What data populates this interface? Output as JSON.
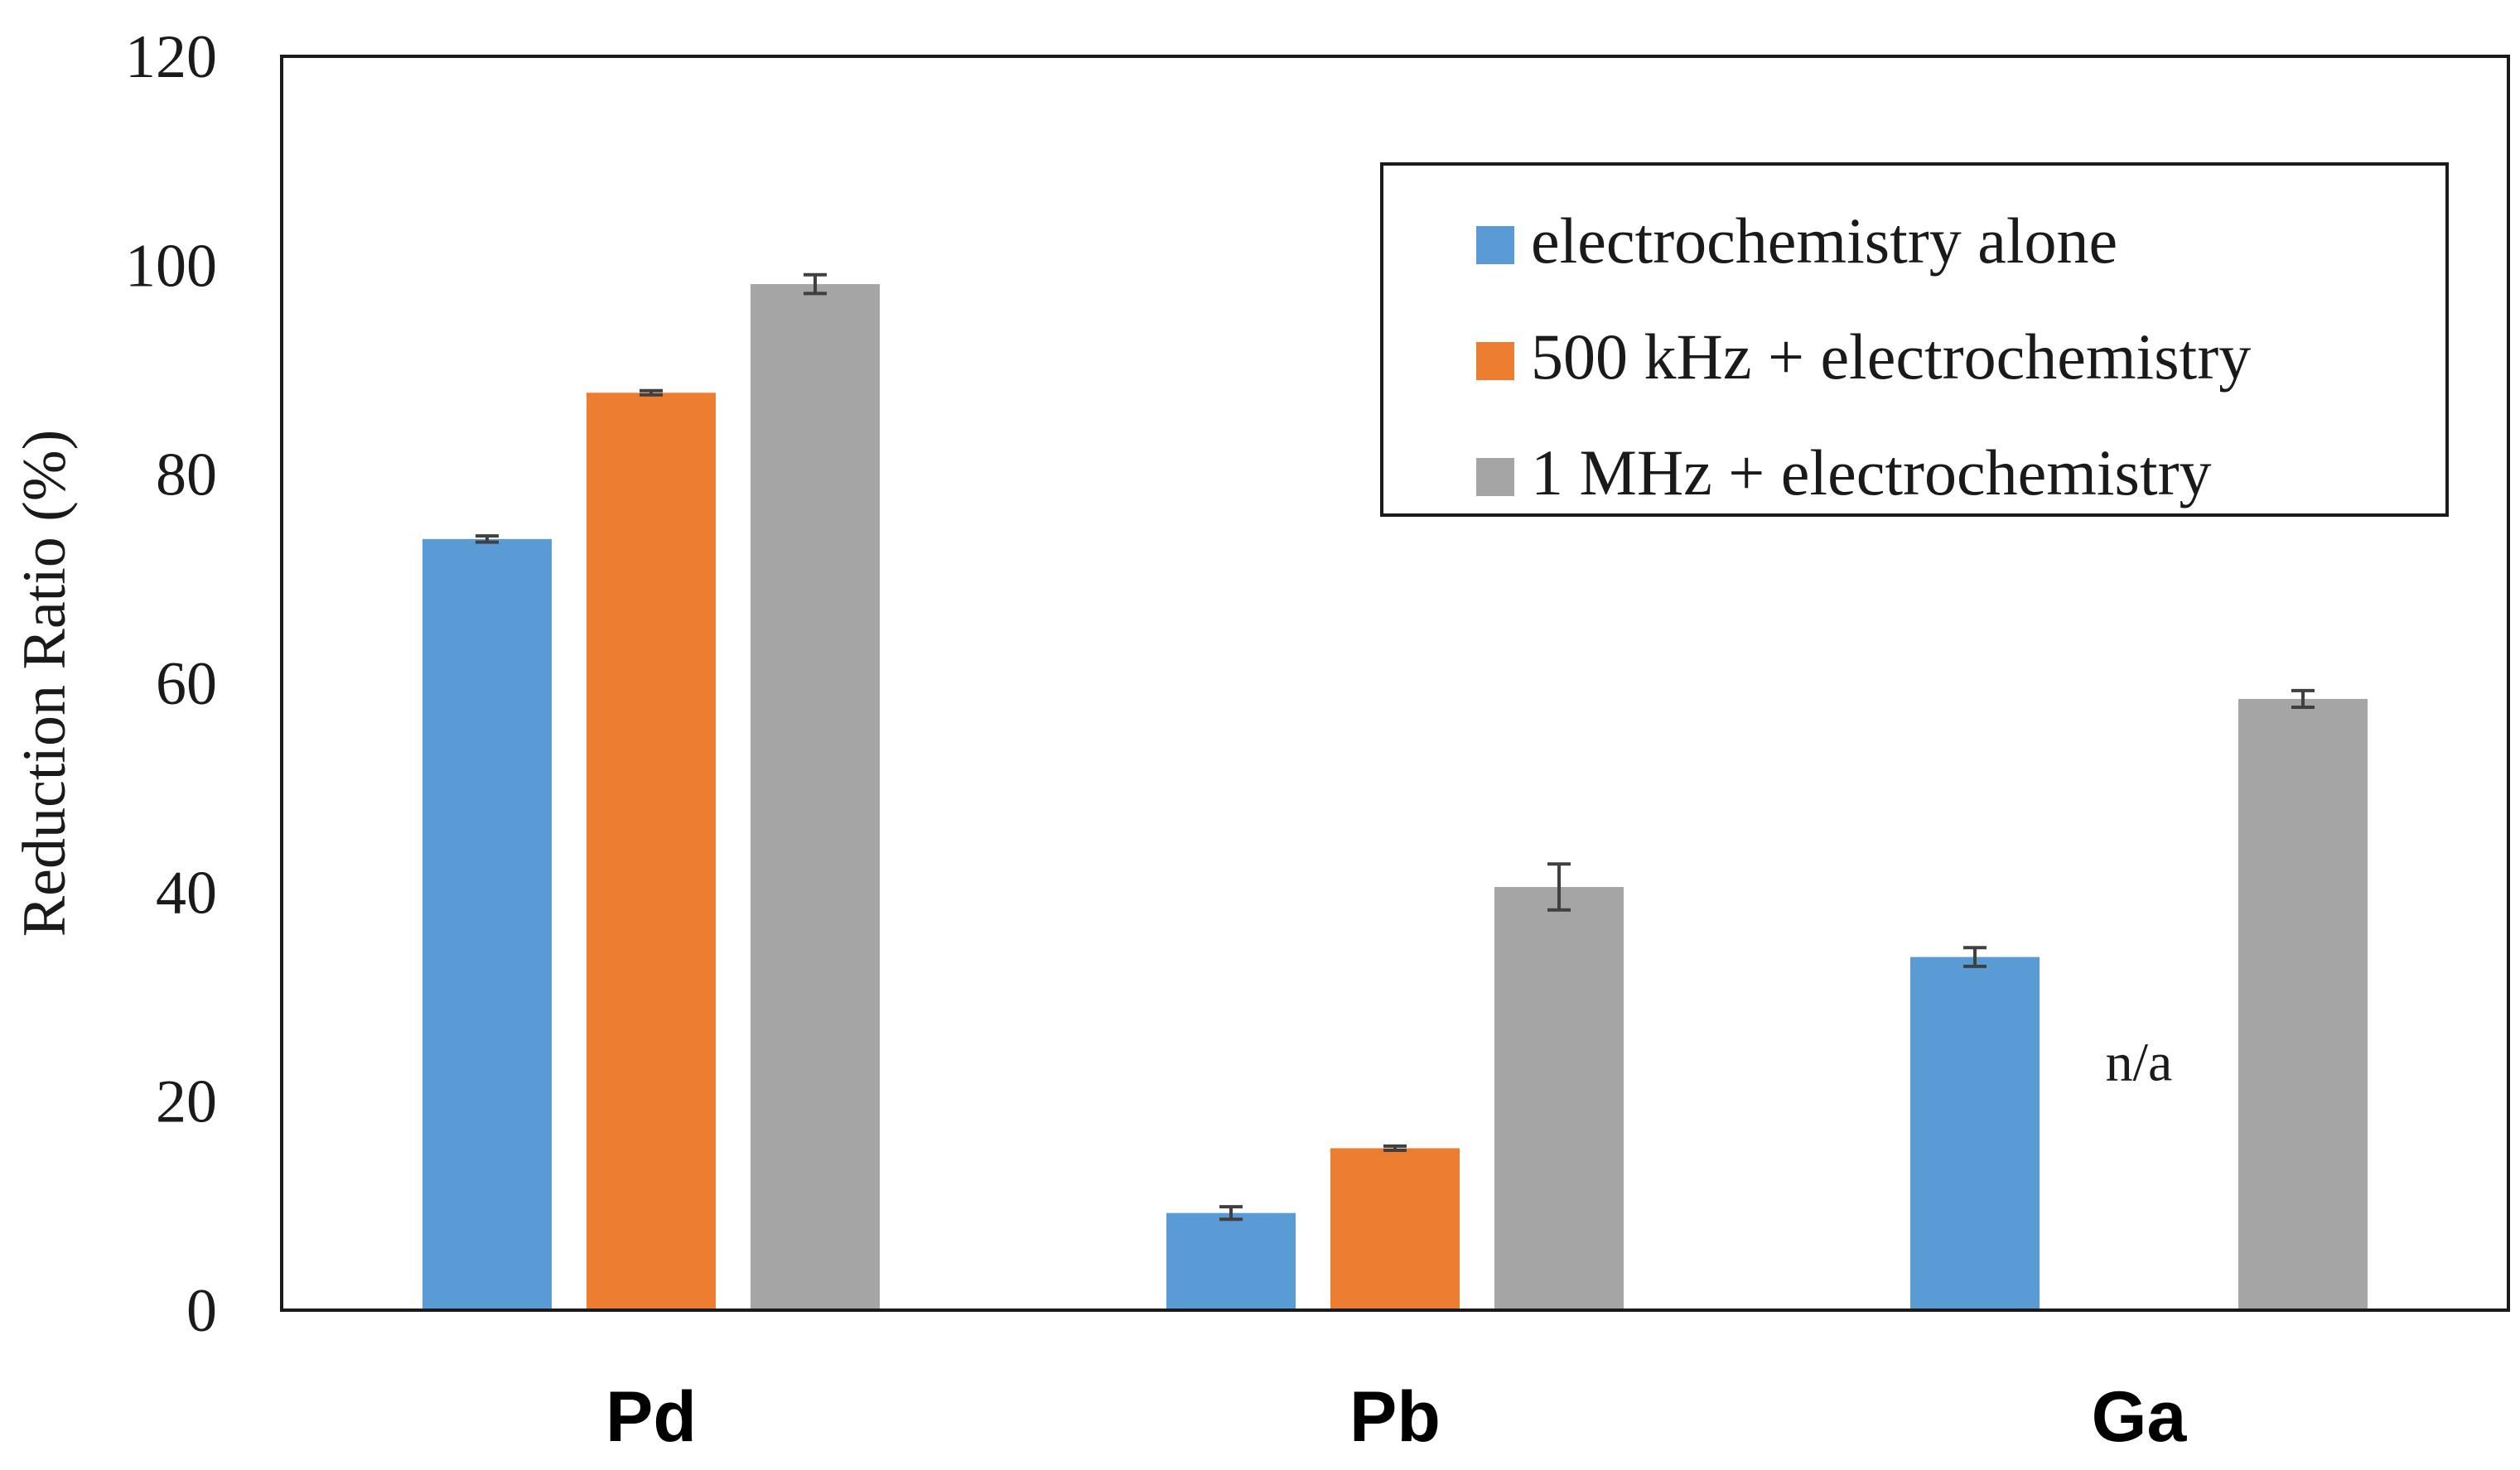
{
  "chart_data": {
    "type": "bar",
    "title": "",
    "xlabel": "",
    "ylabel": "Reduction Ratio (%)",
    "ylim": [
      0,
      120
    ],
    "yticks": [
      0,
      20,
      40,
      60,
      80,
      100,
      120
    ],
    "categories": [
      "Pd",
      "Pb",
      "Ga"
    ],
    "grid": false,
    "legend_position": "top-right",
    "series": [
      {
        "name": "electrochemistry alone",
        "color": "#5b9bd5",
        "values": [
          73.8,
          9.3,
          33.8
        ],
        "errors": [
          0.3,
          0.6,
          0.9
        ]
      },
      {
        "name": "500 kHz + electrochemistry",
        "color": "#ed7d31",
        "values": [
          87.8,
          15.5,
          null
        ],
        "errors": [
          0.2,
          0.2,
          null
        ]
      },
      {
        "name": "1 MHz + electrochemistry",
        "color": "#a5a5a5",
        "values": [
          98.2,
          40.5,
          58.5
        ],
        "errors": [
          0.9,
          2.2,
          0.8
        ]
      }
    ],
    "annotations": [
      {
        "text": "n/a",
        "category": "Ga",
        "series": "500 kHz + electrochemistry",
        "y": 22
      }
    ]
  }
}
